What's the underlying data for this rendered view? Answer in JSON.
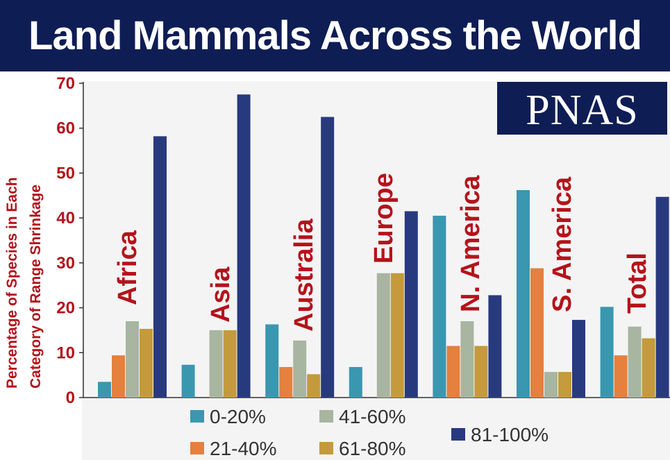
{
  "header": {
    "title": "Land Mammals Across the World"
  },
  "logo": {
    "text": "PNAS"
  },
  "colors": {
    "title_bg": "#0f1d55",
    "label_red": "#b5121b",
    "series": [
      "#3a97b0",
      "#e5803e",
      "#a8b5a0",
      "#c49a3c",
      "#283a7e"
    ]
  },
  "chart_data": {
    "type": "bar",
    "title": "Land Mammals Across the World",
    "ylabel_lines": [
      "Percentage of Species in Each",
      "Category of Range Shrinkage"
    ],
    "xlabel": "",
    "ylim": [
      0,
      70
    ],
    "yticks": [
      0,
      10,
      20,
      30,
      40,
      50,
      60,
      70
    ],
    "grid": false,
    "legend_position": "bottom",
    "categories": [
      "Africa",
      "Asia",
      "Australia",
      "Europe",
      "N. America",
      "S. America",
      "Total"
    ],
    "series": [
      {
        "name": "0-20%",
        "values": [
          3.5,
          7.3,
          16.3,
          6.8,
          40.5,
          46.2,
          20.2
        ]
      },
      {
        "name": "21-40%",
        "values": [
          9.4,
          0,
          6.8,
          0,
          11.5,
          28.8,
          9.4
        ]
      },
      {
        "name": "41-60%",
        "values": [
          17,
          15,
          12.7,
          27.7,
          17,
          5.7,
          15.8
        ]
      },
      {
        "name": "61-80%",
        "values": [
          15.3,
          15,
          5.2,
          27.7,
          11.5,
          5.7,
          13.2
        ]
      },
      {
        "name": "81-100%",
        "values": [
          58.2,
          67.5,
          62.5,
          41.5,
          22.8,
          17.3,
          44.7
        ]
      }
    ]
  }
}
